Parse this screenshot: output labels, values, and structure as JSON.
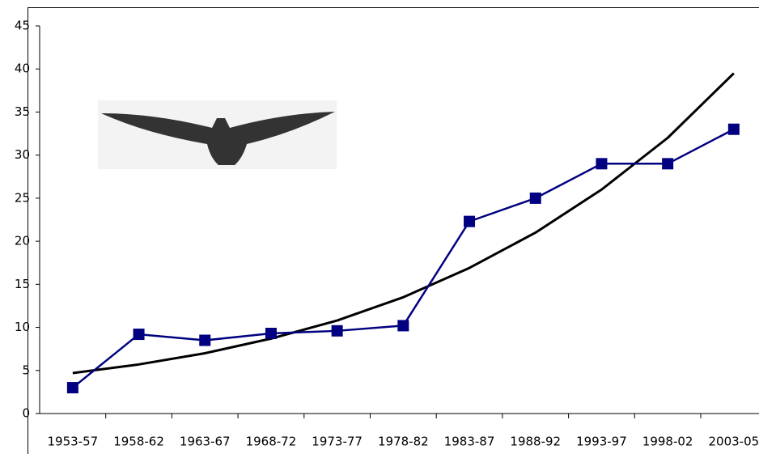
{
  "chart_data": {
    "type": "line",
    "categories": [
      "1953-57",
      "1958-62",
      "1963-67",
      "1968-72",
      "1973-77",
      "1978-82",
      "1983-87",
      "1988-92",
      "1993-97",
      "1998-02",
      "2003-05"
    ],
    "series": [
      {
        "color": "#000080",
        "marker": "square",
        "values": [
          3,
          9.2,
          8.5,
          9.3,
          9.6,
          10.2,
          22.3,
          25,
          29,
          29,
          33
        ]
      },
      {
        "color": "#000000",
        "marker": "none",
        "values": [
          4.7,
          5.7,
          7.0,
          8.7,
          10.8,
          13.5,
          16.9,
          21.0,
          26.0,
          32.0,
          39.5
        ]
      }
    ],
    "ylim": [
      0,
      45
    ],
    "yticks": [
      0,
      5,
      10,
      15,
      20,
      25,
      30,
      35,
      40,
      45
    ],
    "grid": false
  }
}
